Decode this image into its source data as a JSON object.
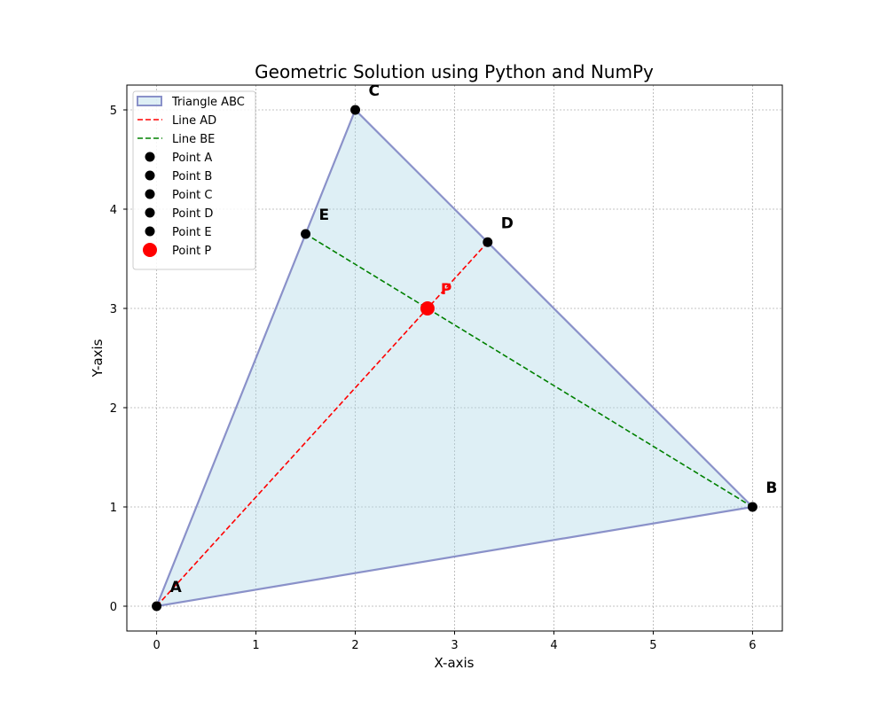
{
  "chart_data": {
    "type": "scatter",
    "title": "Geometric Solution using Python and NumPy",
    "xlabel": "X-axis",
    "ylabel": "Y-axis",
    "xlim": [
      -0.3,
      6.3
    ],
    "ylim": [
      -0.25,
      5.25
    ],
    "xticks": [
      0,
      1,
      2,
      3,
      4,
      5,
      6
    ],
    "yticks": [
      0,
      1,
      2,
      3,
      4,
      5
    ],
    "grid": true,
    "legend_placement": "top-left",
    "triangle": {
      "name": "Triangle ABC",
      "vertices": [
        "A",
        "B",
        "C"
      ],
      "fill": "#add8e6",
      "edge": "#8a91c9"
    },
    "lines": [
      {
        "name": "Line AD",
        "from": "A",
        "to": "D",
        "color": "#ff0000"
      },
      {
        "name": "Line BE",
        "from": "B",
        "to": "E",
        "color": "#008000"
      }
    ],
    "points": [
      {
        "name": "Point A",
        "label": "A",
        "x": 0,
        "y": 0,
        "color": "#000000"
      },
      {
        "name": "Point B",
        "label": "B",
        "x": 6,
        "y": 1,
        "color": "#000000"
      },
      {
        "name": "Point C",
        "label": "C",
        "x": 2,
        "y": 5,
        "color": "#000000"
      },
      {
        "name": "Point D",
        "label": "D",
        "x": 3.333,
        "y": 3.667,
        "color": "#000000"
      },
      {
        "name": "Point E",
        "label": "E",
        "x": 1.5,
        "y": 3.75,
        "color": "#000000"
      },
      {
        "name": "Point P",
        "label": "P",
        "x": 2.727,
        "y": 3.0,
        "color": "#ff0000"
      }
    ]
  }
}
